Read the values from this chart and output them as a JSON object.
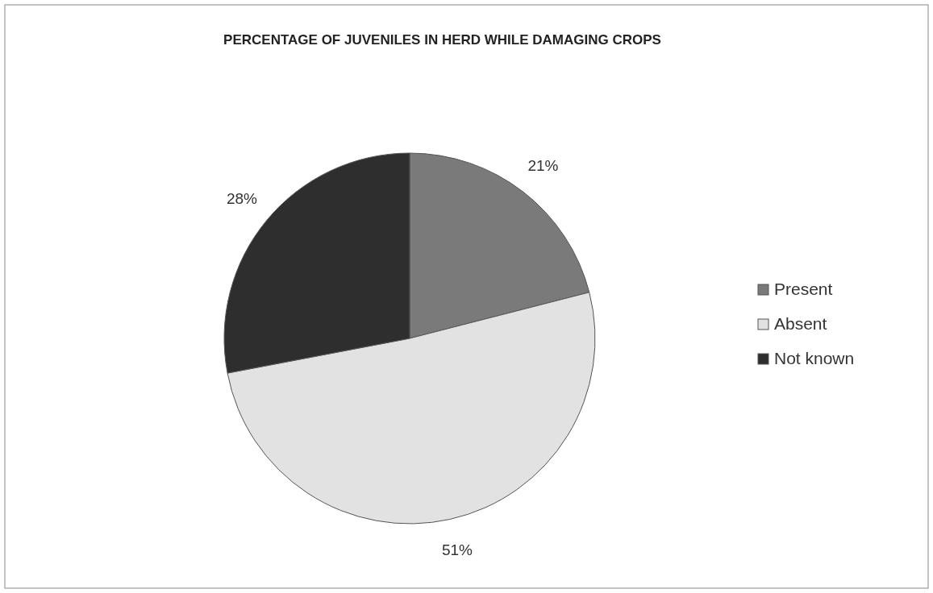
{
  "chart_data": {
    "type": "pie",
    "title": "PERCENTAGE OF JUVENILES IN HERD WHILE DAMAGING CROPS",
    "categories": [
      "Present",
      "Absent",
      "Not known"
    ],
    "values": [
      21,
      51,
      28
    ],
    "colors": [
      "#7a7a7a",
      "#e2e2e2",
      "#2e2e2e"
    ],
    "value_labels": [
      "21%",
      "51%",
      "28%"
    ],
    "legend": "right"
  }
}
